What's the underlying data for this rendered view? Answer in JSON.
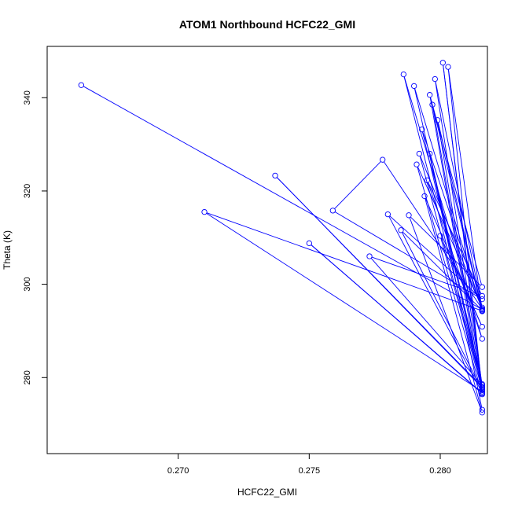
{
  "chart_data": {
    "type": "line",
    "title": "ATOM1 Northbound HCFC22_GMI",
    "xlabel": "HCFC22_GMI",
    "ylabel": "Theta (K)",
    "xlim": [
      0.265,
      0.2818
    ],
    "ylim": [
      263.7,
      351.0
    ],
    "xticks": [
      0.27,
      0.275,
      0.28
    ],
    "xtick_labels": [
      "0.270",
      "0.275",
      "0.280"
    ],
    "yticks": [
      280,
      300,
      320,
      340
    ],
    "ytick_labels": [
      "280",
      "300",
      "320",
      "340"
    ],
    "grid": false,
    "legend": "none",
    "series_color": "#0000ff",
    "series": [
      {
        "x": [
          0.2663,
          0.2816,
          0.2799,
          0.2816,
          0.279,
          0.2816,
          0.271,
          0.2816,
          0.2803,
          0.2816,
          0.2797,
          0.2816,
          0.2737,
          0.2816,
          0.2801,
          0.2816,
          0.275,
          0.2816,
          0.278,
          0.2816,
          0.2759,
          0.2778,
          0.2816,
          0.2792,
          0.2816,
          0.2786,
          0.2816,
          0.2795,
          0.2816,
          0.2773,
          0.2816,
          0.2798,
          0.2816,
          0.2791,
          0.2816,
          0.2796,
          0.2816,
          0.2788,
          0.2816,
          0.2794,
          0.2816,
          0.28,
          0.2816,
          0.2785,
          0.2816,
          0.2793,
          0.2816,
          0.2796,
          0.2816
        ],
        "y": [
          342.7,
          294.6,
          335.2,
          277.4,
          342.5,
          294.3,
          315.5,
          277.0,
          346.6,
          294.2,
          338.5,
          278.0,
          323.3,
          277.8,
          347.5,
          276.6,
          308.8,
          276.7,
          315.0,
          296.8,
          315.8,
          326.7,
          294.7,
          328.0,
          278.0,
          345.0,
          288.3,
          322.3,
          297.5,
          306.0,
          278.4,
          344.0,
          295.0,
          325.7,
          276.4,
          340.6,
          299.4,
          314.8,
          272.5,
          318.9,
          290.9,
          310.4,
          277.3,
          311.6,
          294.4,
          333.2,
          278.6,
          328.0,
          273.1
        ]
      }
    ]
  }
}
